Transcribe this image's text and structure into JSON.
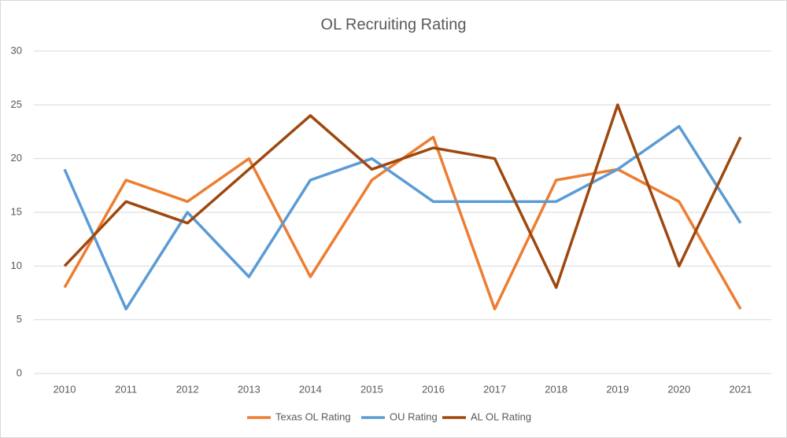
{
  "chart_data": {
    "type": "line",
    "title": "OL Recruiting Rating",
    "categories": [
      "2010",
      "2011",
      "2012",
      "2013",
      "2014",
      "2015",
      "2016",
      "2017",
      "2018",
      "2019",
      "2020",
      "2021"
    ],
    "series": [
      {
        "name": "Texas OL Rating",
        "color": "#ed7d31",
        "values": [
          8,
          18,
          16,
          20,
          9,
          18,
          22,
          6,
          18,
          19,
          16,
          6
        ]
      },
      {
        "name": "OU Rating",
        "color": "#5b9bd5",
        "values": [
          19,
          6,
          15,
          9,
          18,
          20,
          16,
          16,
          16,
          19,
          23,
          14
        ]
      },
      {
        "name": "AL OL Rating",
        "color": "#9e480e",
        "values": [
          10,
          16,
          14,
          19,
          24,
          19,
          21,
          20,
          8,
          25,
          10,
          22
        ]
      }
    ],
    "ylim": [
      0,
      30
    ],
    "yticks": [
      0,
      5,
      10,
      15,
      20,
      25,
      30
    ],
    "grid": true,
    "legend": "bottom"
  }
}
